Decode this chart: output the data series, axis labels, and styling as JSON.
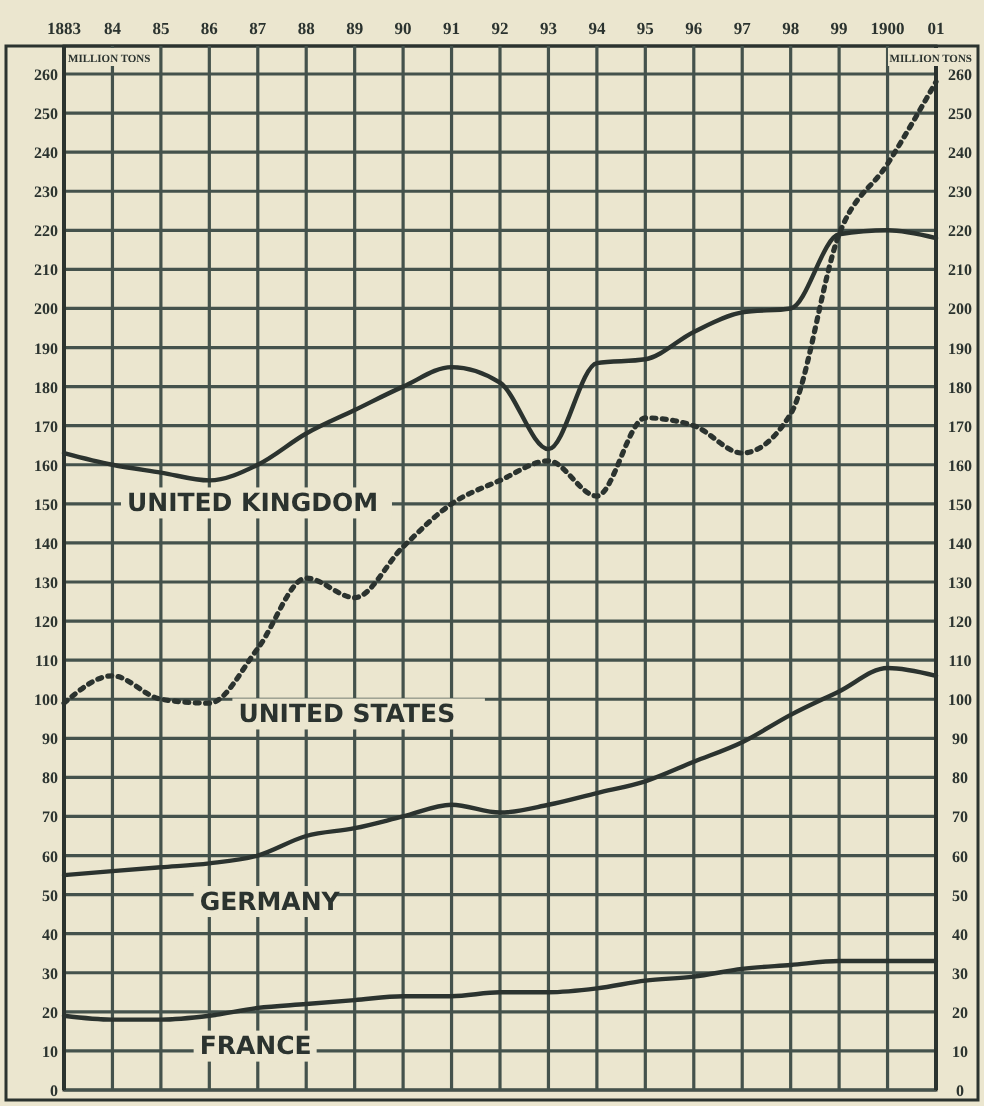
{
  "chart_data": {
    "type": "line",
    "ylabel": "MILLION TONS",
    "y2label": "MILLION TONS",
    "x": [
      1883,
      1884,
      1885,
      1886,
      1887,
      1888,
      1889,
      1890,
      1891,
      1892,
      1893,
      1894,
      1895,
      1896,
      1897,
      1898,
      1899,
      1900,
      1901
    ],
    "xlim": [
      1883,
      1901
    ],
    "xticks": [
      1883,
      {
        "value": 1884,
        "label": "84"
      },
      {
        "value": 1885,
        "label": "85"
      },
      {
        "value": 1886,
        "label": "86"
      },
      {
        "value": 1887,
        "label": "87"
      },
      {
        "value": 1888,
        "label": "88"
      },
      {
        "value": 1889,
        "label": "89"
      },
      {
        "value": 1890,
        "label": "90"
      },
      {
        "value": 1891,
        "label": "91"
      },
      {
        "value": 1892,
        "label": "92"
      },
      {
        "value": 1893,
        "label": "93"
      },
      {
        "value": 1894,
        "label": "94"
      },
      {
        "value": 1895,
        "label": "95"
      },
      {
        "value": 1896,
        "label": "96"
      },
      {
        "value": 1897,
        "label": "97"
      },
      {
        "value": 1898,
        "label": "98"
      },
      {
        "value": 1899,
        "label": "99"
      },
      1900,
      {
        "value": 1901,
        "label": "01"
      }
    ],
    "ylim": [
      0,
      260
    ],
    "yticks": [
      0,
      10,
      20,
      30,
      40,
      50,
      60,
      70,
      80,
      90,
      100,
      110,
      120,
      130,
      140,
      150,
      160,
      170,
      180,
      190,
      200,
      210,
      220,
      230,
      240,
      250,
      260
    ],
    "y2lim": [
      0,
      260
    ],
    "y2ticks": [
      0,
      10,
      20,
      30,
      40,
      50,
      60,
      70,
      80,
      90,
      100,
      110,
      120,
      130,
      140,
      150,
      160,
      170,
      180,
      190,
      200,
      210,
      220,
      230,
      240,
      250,
      260
    ],
    "grid": true,
    "legend": false,
    "marker": "none",
    "series": [
      {
        "name": "UNITED KINGDOM",
        "color": "#2b332f",
        "line_style": "solid",
        "values": [
          163,
          160,
          158,
          156,
          160,
          168,
          174,
          180,
          185,
          181,
          164,
          186,
          187,
          194,
          199,
          200,
          219,
          220,
          218
        ]
      },
      {
        "name": "UNITED STATES",
        "color": "#2b332f",
        "line_style": "dotted",
        "values": [
          99,
          106,
          100,
          99,
          113,
          131,
          126,
          139,
          150,
          156,
          161,
          152,
          172,
          170,
          163,
          173,
          219,
          237,
          258
        ]
      },
      {
        "name": "GERMANY",
        "color": "#2b332f",
        "line_style": "solid",
        "values": [
          55,
          56,
          57,
          58,
          60,
          65,
          67,
          70,
          73,
          71,
          73,
          76,
          79,
          84,
          89,
          96,
          102,
          108,
          106
        ]
      },
      {
        "name": "FRANCE",
        "color": "#2b332f",
        "line_style": "solid",
        "values": [
          19,
          18,
          18,
          19,
          21,
          22,
          23,
          24,
          24,
          25,
          25,
          26,
          28,
          29,
          31,
          32,
          33,
          33,
          33
        ]
      }
    ]
  }
}
